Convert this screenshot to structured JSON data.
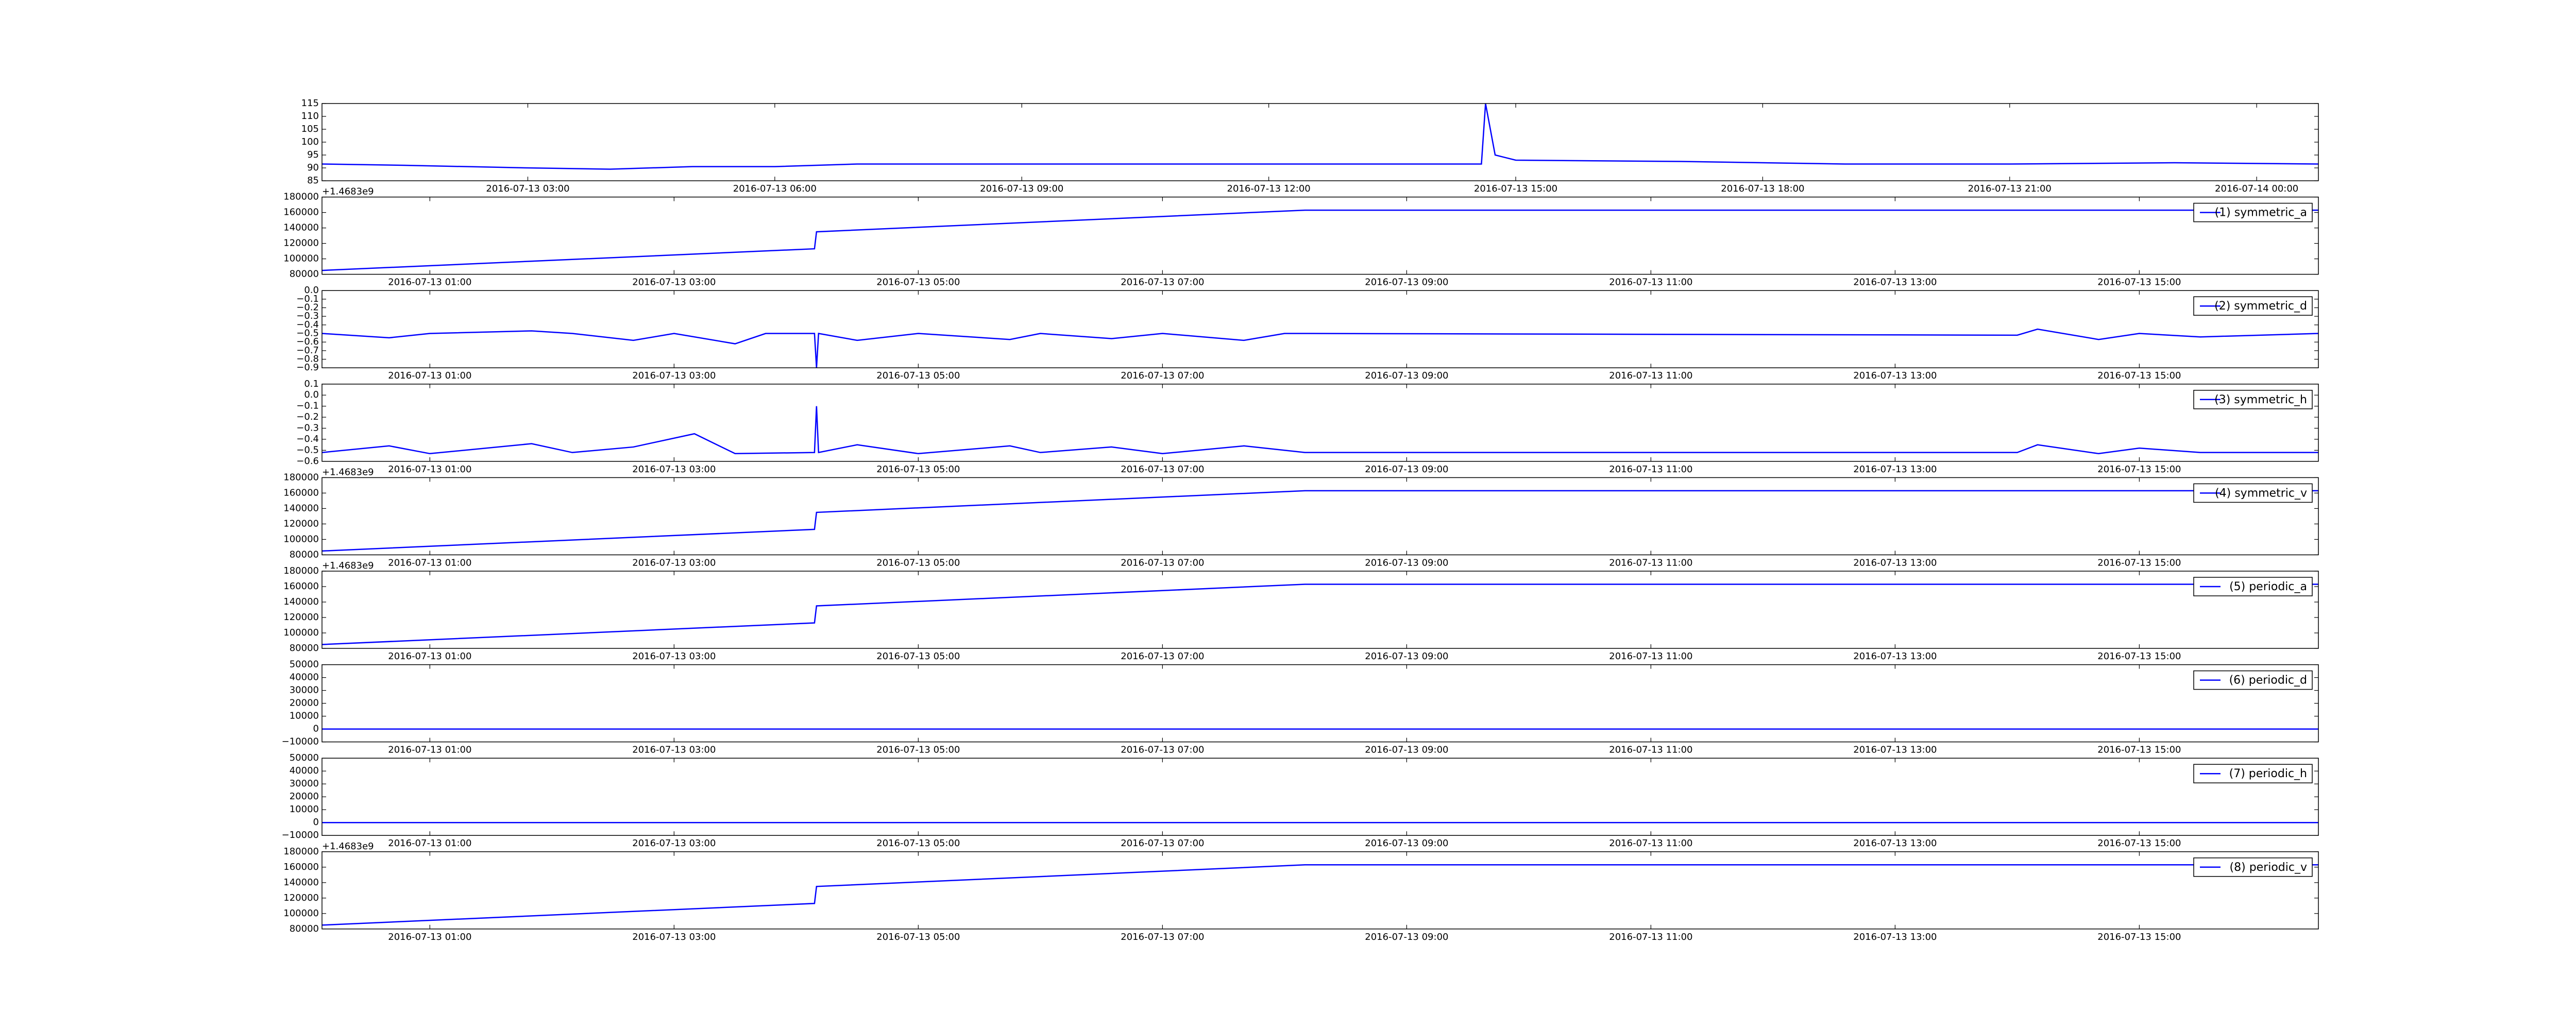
{
  "chart_data": [
    {
      "type": "line",
      "color": "#0000ff",
      "x": [
        "2016-07-13 00:30",
        "2016-07-13 01:30",
        "2016-07-13 03:00",
        "2016-07-13 04:00",
        "2016-07-13 05:00",
        "2016-07-13 06:00",
        "2016-07-13 07:00",
        "2016-07-13 09:00",
        "2016-07-13 14:35",
        "2016-07-13 14:38",
        "2016-07-13 14:45",
        "2016-07-13 15:00",
        "2016-07-13 17:00",
        "2016-07-13 19:00",
        "2016-07-13 21:00",
        "2016-07-13 23:00",
        "2016-07-14 00:45"
      ],
      "values": [
        91.5,
        91,
        90,
        89.5,
        90.5,
        90.5,
        91.5,
        91.5,
        91.5,
        115,
        95,
        93,
        92.5,
        91.5,
        91.5,
        92,
        91.5
      ],
      "xlim": [
        "2016-07-13 00:30",
        "2016-07-14 00:45"
      ],
      "xticks": [
        "2016-07-13 03:00",
        "2016-07-13 06:00",
        "2016-07-13 09:00",
        "2016-07-13 12:00",
        "2016-07-13 15:00",
        "2016-07-13 18:00",
        "2016-07-13 21:00",
        "2016-07-14 00:00"
      ],
      "ylim": [
        85,
        115
      ],
      "yticks": [
        85,
        90,
        95,
        100,
        105,
        110,
        115
      ]
    },
    {
      "type": "line",
      "offset_label": "+1.4683e9",
      "x": [
        "2016-07-13 00:07",
        "2016-07-13 04:09",
        "2016-07-13 04:10",
        "2016-07-13 08:10",
        "2016-07-13 16:28"
      ],
      "series": [
        {
          "name": "(1) symmetric_a",
          "color": "#0000ff",
          "values": [
            85000,
            113000,
            135000,
            163000,
            163000
          ]
        }
      ],
      "xlim": [
        "2016-07-13 00:07",
        "2016-07-13 16:28"
      ],
      "xticks": [
        "2016-07-13 01:00",
        "2016-07-13 03:00",
        "2016-07-13 05:00",
        "2016-07-13 07:00",
        "2016-07-13 09:00",
        "2016-07-13 11:00",
        "2016-07-13 13:00",
        "2016-07-13 15:00"
      ],
      "ylim": [
        80000,
        180000
      ],
      "yticks": [
        80000,
        100000,
        120000,
        140000,
        160000,
        180000
      ]
    },
    {
      "type": "line",
      "x": [
        "2016-07-13 00:07",
        "2016-07-13 00:40",
        "2016-07-13 01:00",
        "2016-07-13 01:50",
        "2016-07-13 02:10",
        "2016-07-13 02:40",
        "2016-07-13 03:00",
        "2016-07-13 03:30",
        "2016-07-13 03:45",
        "2016-07-13 04:09",
        "2016-07-13 04:10",
        "2016-07-13 04:11",
        "2016-07-13 04:30",
        "2016-07-13 05:00",
        "2016-07-13 05:45",
        "2016-07-13 06:00",
        "2016-07-13 06:35",
        "2016-07-13 07:00",
        "2016-07-13 07:40",
        "2016-07-13 08:00",
        "2016-07-13 08:10",
        "2016-07-13 14:00",
        "2016-07-13 14:10",
        "2016-07-13 14:40",
        "2016-07-13 15:00",
        "2016-07-13 15:30",
        "2016-07-13 16:28"
      ],
      "series": [
        {
          "name": "(2) symmetric_d",
          "color": "#0000ff",
          "values": [
            -0.5,
            -0.55,
            -0.5,
            -0.47,
            -0.5,
            -0.58,
            -0.5,
            -0.62,
            -0.5,
            -0.5,
            -0.9,
            -0.5,
            -0.58,
            -0.5,
            -0.57,
            -0.5,
            -0.56,
            -0.5,
            -0.58,
            -0.5,
            -0.5,
            -0.52,
            -0.45,
            -0.57,
            -0.5,
            -0.54,
            -0.5
          ]
        }
      ],
      "xlim": [
        "2016-07-13 00:07",
        "2016-07-13 16:28"
      ],
      "xticks": [
        "2016-07-13 01:00",
        "2016-07-13 03:00",
        "2016-07-13 05:00",
        "2016-07-13 07:00",
        "2016-07-13 09:00",
        "2016-07-13 11:00",
        "2016-07-13 13:00",
        "2016-07-13 15:00"
      ],
      "ylim": [
        -0.9,
        0.0
      ],
      "yticks": [
        {
          "value": -0.9,
          "label": "−0.9"
        },
        {
          "value": -0.8,
          "label": "−0.8"
        },
        {
          "value": -0.7,
          "label": "−0.7"
        },
        {
          "value": -0.6,
          "label": "−0.6"
        },
        {
          "value": -0.5,
          "label": "−0.5"
        },
        {
          "value": -0.4,
          "label": "−0.4"
        },
        {
          "value": -0.3,
          "label": "−0.3"
        },
        {
          "value": -0.2,
          "label": "−0.2"
        },
        {
          "value": -0.1,
          "label": "−0.1"
        },
        {
          "value": 0,
          "label": "0.0"
        }
      ]
    },
    {
      "type": "line",
      "x": [
        "2016-07-13 00:07",
        "2016-07-13 00:40",
        "2016-07-13 01:00",
        "2016-07-13 01:50",
        "2016-07-13 02:10",
        "2016-07-13 02:40",
        "2016-07-13 03:10",
        "2016-07-13 03:30",
        "2016-07-13 04:09",
        "2016-07-13 04:10",
        "2016-07-13 04:11",
        "2016-07-13 04:30",
        "2016-07-13 05:00",
        "2016-07-13 05:45",
        "2016-07-13 06:00",
        "2016-07-13 06:35",
        "2016-07-13 07:00",
        "2016-07-13 07:40",
        "2016-07-13 08:10",
        "2016-07-13 14:00",
        "2016-07-13 14:10",
        "2016-07-13 14:40",
        "2016-07-13 15:00",
        "2016-07-13 15:30",
        "2016-07-13 16:28"
      ],
      "series": [
        {
          "name": "(3) symmetric_h",
          "color": "#0000ff",
          "values": [
            -0.52,
            -0.46,
            -0.53,
            -0.44,
            -0.52,
            -0.47,
            -0.35,
            -0.53,
            -0.52,
            -0.1,
            -0.52,
            -0.45,
            -0.53,
            -0.46,
            -0.52,
            -0.47,
            -0.53,
            -0.46,
            -0.52,
            -0.52,
            -0.45,
            -0.53,
            -0.48,
            -0.52,
            -0.52
          ]
        }
      ],
      "xlim": [
        "2016-07-13 00:07",
        "2016-07-13 16:28"
      ],
      "xticks": [
        "2016-07-13 01:00",
        "2016-07-13 03:00",
        "2016-07-13 05:00",
        "2016-07-13 07:00",
        "2016-07-13 09:00",
        "2016-07-13 11:00",
        "2016-07-13 13:00",
        "2016-07-13 15:00"
      ],
      "ylim": [
        -0.6,
        0.1
      ],
      "yticks": [
        {
          "value": -0.6,
          "label": "−0.6"
        },
        {
          "value": -0.5,
          "label": "−0.5"
        },
        {
          "value": -0.4,
          "label": "−0.4"
        },
        {
          "value": -0.3,
          "label": "−0.3"
        },
        {
          "value": -0.2,
          "label": "−0.2"
        },
        {
          "value": -0.1,
          "label": "−0.1"
        },
        {
          "value": 0,
          "label": "0.0"
        },
        0.1
      ]
    },
    {
      "type": "line",
      "offset_label": "+1.4683e9",
      "x": [
        "2016-07-13 00:07",
        "2016-07-13 04:09",
        "2016-07-13 04:10",
        "2016-07-13 08:10",
        "2016-07-13 16:28"
      ],
      "series": [
        {
          "name": "(4) symmetric_v",
          "color": "#0000ff",
          "values": [
            85000,
            113000,
            135000,
            163000,
            163000
          ]
        }
      ],
      "xlim": [
        "2016-07-13 00:07",
        "2016-07-13 16:28"
      ],
      "xticks": [
        "2016-07-13 01:00",
        "2016-07-13 03:00",
        "2016-07-13 05:00",
        "2016-07-13 07:00",
        "2016-07-13 09:00",
        "2016-07-13 11:00",
        "2016-07-13 13:00",
        "2016-07-13 15:00"
      ],
      "ylim": [
        80000,
        180000
      ],
      "yticks": [
        80000,
        100000,
        120000,
        140000,
        160000,
        180000
      ]
    },
    {
      "type": "line",
      "offset_label": "+1.4683e9",
      "x": [
        "2016-07-13 00:07",
        "2016-07-13 04:09",
        "2016-07-13 04:10",
        "2016-07-13 08:10",
        "2016-07-13 16:28"
      ],
      "series": [
        {
          "name": "(5) periodic_a",
          "color": "#0000ff",
          "values": [
            85000,
            113000,
            135000,
            163000,
            163000
          ]
        }
      ],
      "xlim": [
        "2016-07-13 00:07",
        "2016-07-13 16:28"
      ],
      "xticks": [
        "2016-07-13 01:00",
        "2016-07-13 03:00",
        "2016-07-13 05:00",
        "2016-07-13 07:00",
        "2016-07-13 09:00",
        "2016-07-13 11:00",
        "2016-07-13 13:00",
        "2016-07-13 15:00"
      ],
      "ylim": [
        80000,
        180000
      ],
      "yticks": [
        80000,
        100000,
        120000,
        140000,
        160000,
        180000
      ]
    },
    {
      "type": "line",
      "x": [
        "2016-07-13 00:07",
        "2016-07-13 16:28"
      ],
      "series": [
        {
          "name": "(6) periodic_d",
          "color": "#0000ff",
          "values": [
            0,
            0
          ]
        }
      ],
      "xlim": [
        "2016-07-13 00:07",
        "2016-07-13 16:28"
      ],
      "xticks": [
        "2016-07-13 01:00",
        "2016-07-13 03:00",
        "2016-07-13 05:00",
        "2016-07-13 07:00",
        "2016-07-13 09:00",
        "2016-07-13 11:00",
        "2016-07-13 13:00",
        "2016-07-13 15:00"
      ],
      "ylim": [
        -10000,
        50000
      ],
      "yticks": [
        {
          "value": -10000,
          "label": "−10000"
        },
        0,
        10000,
        20000,
        30000,
        40000,
        50000
      ]
    },
    {
      "type": "line",
      "x": [
        "2016-07-13 00:07",
        "2016-07-13 16:28"
      ],
      "series": [
        {
          "name": "(7) periodic_h",
          "color": "#0000ff",
          "values": [
            0,
            0
          ]
        }
      ],
      "xlim": [
        "2016-07-13 00:07",
        "2016-07-13 16:28"
      ],
      "xticks": [
        "2016-07-13 01:00",
        "2016-07-13 03:00",
        "2016-07-13 05:00",
        "2016-07-13 07:00",
        "2016-07-13 09:00",
        "2016-07-13 11:00",
        "2016-07-13 13:00",
        "2016-07-13 15:00"
      ],
      "ylim": [
        -10000,
        50000
      ],
      "yticks": [
        {
          "value": -10000,
          "label": "−10000"
        },
        0,
        10000,
        20000,
        30000,
        40000,
        50000
      ]
    },
    {
      "type": "line",
      "offset_label": "+1.4683e9",
      "x": [
        "2016-07-13 00:07",
        "2016-07-13 04:09",
        "2016-07-13 04:10",
        "2016-07-13 08:10",
        "2016-07-13 16:28"
      ],
      "series": [
        {
          "name": "(8) periodic_v",
          "color": "#0000ff",
          "values": [
            85000,
            113000,
            135000,
            163000,
            163000
          ]
        }
      ],
      "xlim": [
        "2016-07-13 00:07",
        "2016-07-13 16:28"
      ],
      "xticks": [
        "2016-07-13 01:00",
        "2016-07-13 03:00",
        "2016-07-13 05:00",
        "2016-07-13 07:00",
        "2016-07-13 09:00",
        "2016-07-13 11:00",
        "2016-07-13 13:00",
        "2016-07-13 15:00"
      ],
      "ylim": [
        80000,
        180000
      ],
      "yticks": [
        80000,
        100000,
        120000,
        140000,
        160000,
        180000
      ]
    }
  ]
}
